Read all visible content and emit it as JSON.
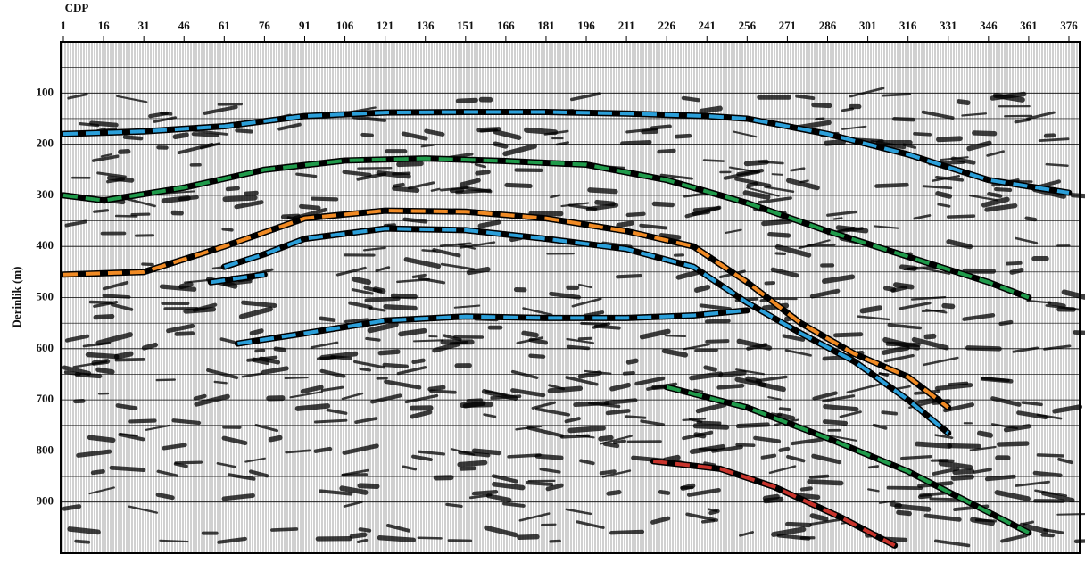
{
  "chart_data": {
    "type": "line",
    "x_label": "CDP",
    "y_label": "Derinlik (m)",
    "xlim": [
      0,
      380
    ],
    "ylim": [
      0,
      1000
    ],
    "xticks": [
      1,
      16,
      31,
      46,
      61,
      76,
      91,
      106,
      121,
      136,
      151,
      166,
      181,
      196,
      211,
      226,
      241,
      256,
      271,
      286,
      301,
      316,
      331,
      346,
      361,
      376
    ],
    "yticks": [
      100,
      200,
      300,
      400,
      500,
      600,
      700,
      800,
      900
    ],
    "y_inverted": true,
    "grid": true,
    "series": [
      {
        "color": "#2b9fd9",
        "x": [
          1,
          31,
          61,
          91,
          121,
          151,
          181,
          211,
          241,
          256,
          286,
          316,
          346,
          376
        ],
        "values": [
          180,
          175,
          165,
          145,
          138,
          137,
          137,
          140,
          145,
          150,
          180,
          220,
          270,
          295
        ]
      },
      {
        "color": "#1f9a4a",
        "x": [
          1,
          16,
          46,
          76,
          106,
          136,
          166,
          196,
          226,
          256,
          286,
          316,
          346,
          361
        ],
        "values": [
          300,
          310,
          285,
          250,
          232,
          228,
          233,
          240,
          270,
          315,
          370,
          420,
          470,
          500
        ]
      },
      {
        "color": "#f08a24",
        "x": [
          1,
          31,
          61,
          91,
          121,
          151,
          181,
          211,
          236,
          256,
          276,
          296,
          316,
          331
        ],
        "values": [
          455,
          450,
          400,
          345,
          330,
          332,
          345,
          370,
          400,
          470,
          550,
          610,
          655,
          715
        ]
      },
      {
        "color": "#2b9fd9",
        "x": [
          61,
          76,
          91,
          121,
          151,
          181,
          211,
          236,
          256,
          276,
          296,
          316,
          331
        ],
        "values": [
          440,
          415,
          385,
          365,
          368,
          385,
          405,
          440,
          510,
          570,
          625,
          700,
          765
        ]
      },
      {
        "color": "#2b9fd9",
        "x": [
          56,
          76
        ],
        "values": [
          470,
          455
        ]
      },
      {
        "color": "#2b9fd9",
        "x": [
          66,
          91,
          121,
          151,
          181,
          211,
          236,
          256
        ],
        "values": [
          590,
          570,
          545,
          537,
          540,
          540,
          535,
          525
        ]
      },
      {
        "color": "#1f9a4a",
        "x": [
          226,
          256,
          286,
          316,
          346,
          361
        ],
        "values": [
          675,
          715,
          775,
          840,
          920,
          960
        ]
      },
      {
        "color": "#c8332b",
        "x": [
          221,
          246,
          266,
          291,
          311
        ],
        "values": [
          820,
          835,
          870,
          930,
          985
        ]
      }
    ]
  }
}
